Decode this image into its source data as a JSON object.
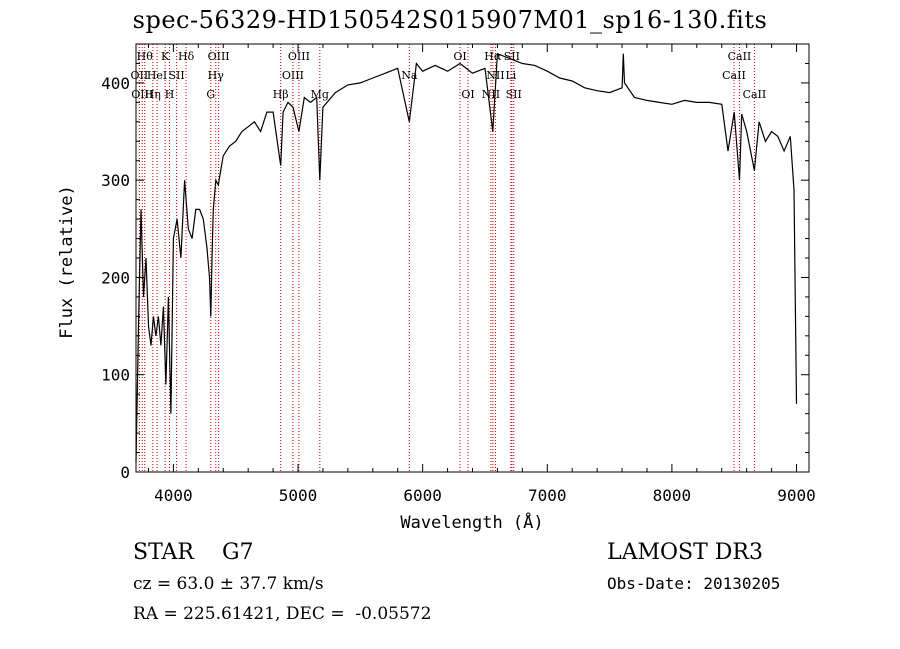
{
  "chart_data": {
    "type": "line",
    "title": "spec-56329-HD150542S015907M01_sp16-130.fits",
    "xlabel": "Wavelength (Å)",
    "ylabel": "Flux (relative)",
    "xlim": [
      3700,
      9100
    ],
    "ylim": [
      0,
      440
    ],
    "xticks": [
      4000,
      5000,
      6000,
      7000,
      8000,
      9000
    ],
    "yticks": [
      0,
      100,
      200,
      300,
      400
    ],
    "series": [
      {
        "name": "flux",
        "x": [
          3700,
          3720,
          3740,
          3760,
          3780,
          3800,
          3820,
          3840,
          3860,
          3880,
          3900,
          3920,
          3940,
          3960,
          3980,
          4000,
          4030,
          4060,
          4090,
          4120,
          4150,
          4180,
          4210,
          4240,
          4270,
          4290,
          4300,
          4310,
          4320,
          4340,
          4360,
          4380,
          4400,
          4450,
          4500,
          4550,
          4600,
          4650,
          4700,
          4750,
          4800,
          4861,
          4880,
          4920,
          4960,
          5007,
          5050,
          5100,
          5150,
          5175,
          5200,
          5300,
          5400,
          5500,
          5600,
          5700,
          5800,
          5893,
          5950,
          6000,
          6100,
          6200,
          6300,
          6400,
          6500,
          6563,
          6600,
          6700,
          6800,
          6900,
          7000,
          7100,
          7200,
          7300,
          7400,
          7500,
          7600,
          7610,
          7620,
          7700,
          7800,
          7900,
          8000,
          8100,
          8200,
          8300,
          8400,
          8450,
          8500,
          8542,
          8560,
          8600,
          8662,
          8700,
          8750,
          8800,
          8850,
          8900,
          8950,
          8980,
          9000
        ],
        "values": [
          10,
          150,
          270,
          180,
          220,
          150,
          130,
          160,
          140,
          160,
          130,
          170,
          90,
          180,
          60,
          240,
          260,
          220,
          300,
          250,
          240,
          270,
          270,
          260,
          230,
          200,
          160,
          220,
          270,
          300,
          295,
          310,
          325,
          335,
          340,
          350,
          355,
          360,
          350,
          370,
          370,
          315,
          370,
          380,
          375,
          350,
          385,
          380,
          385,
          300,
          375,
          390,
          398,
          400,
          405,
          410,
          415,
          360,
          420,
          412,
          418,
          412,
          420,
          410,
          415,
          350,
          430,
          425,
          420,
          418,
          412,
          405,
          402,
          395,
          392,
          390,
          395,
          430,
          400,
          385,
          382,
          380,
          378,
          382,
          380,
          380,
          378,
          330,
          370,
          300,
          368,
          350,
          310,
          360,
          340,
          350,
          345,
          330,
          345,
          290,
          70
        ]
      }
    ],
    "line_markers": [
      {
        "wavelength": 3727,
        "label": "OII",
        "row": 1
      },
      {
        "wavelength": 3750,
        "label": "OIII",
        "row": 2
      },
      {
        "wavelength": 3770,
        "label": "Hθ",
        "row": 0
      },
      {
        "wavelength": 3835,
        "label": "Hη",
        "row": 2
      },
      {
        "wavelength": 3869,
        "label": "HeI",
        "row": 1
      },
      {
        "wavelength": 3934,
        "label": "K",
        "row": 0
      },
      {
        "wavelength": 3969,
        "label": "H",
        "row": 2
      },
      {
        "wavelength": 4026,
        "label": "SII",
        "row": 1
      },
      {
        "wavelength": 4102,
        "label": "Hδ",
        "row": 0
      },
      {
        "wavelength": 4300,
        "label": "G",
        "row": 2
      },
      {
        "wavelength": 4340,
        "label": "Hγ",
        "row": 1
      },
      {
        "wavelength": 4363,
        "label": "OIII",
        "row": 0
      },
      {
        "wavelength": 4861,
        "label": "Hβ",
        "row": 2
      },
      {
        "wavelength": 4959,
        "label": "OIII",
        "row": 1
      },
      {
        "wavelength": 5007,
        "label": "OIII",
        "row": 0
      },
      {
        "wavelength": 5175,
        "label": "Mg",
        "row": 2
      },
      {
        "wavelength": 5893,
        "label": "Na",
        "row": 1
      },
      {
        "wavelength": 6300,
        "label": "OI",
        "row": 0
      },
      {
        "wavelength": 6364,
        "label": "OI",
        "row": 2
      },
      {
        "wavelength": 6548,
        "label": "NII",
        "row": 2
      },
      {
        "wavelength": 6563,
        "label": "Hα",
        "row": 0
      },
      {
        "wavelength": 6584,
        "label": "NII",
        "row": 1
      },
      {
        "wavelength": 6708,
        "label": "Li",
        "row": 1
      },
      {
        "wavelength": 6716,
        "label": "SII",
        "row": 0
      },
      {
        "wavelength": 6731,
        "label": "SII",
        "row": 2
      },
      {
        "wavelength": 8498,
        "label": "CaII",
        "row": 1
      },
      {
        "wavelength": 8542,
        "label": "CaII",
        "row": 0
      },
      {
        "wavelength": 8662,
        "label": "CaII",
        "row": 2
      }
    ]
  },
  "info": {
    "object_class": "STAR",
    "subclass": "G7",
    "survey": "LAMOST DR3",
    "redshift": "cz = 63.0 ± 37.7 km/s",
    "obs_date": "Obs-Date: 20130205",
    "coordinates": "RA = 225.61421, DEC =  -0.05572"
  },
  "colors": {
    "spectrum": "#000000",
    "line_marker": "#cc0000",
    "axes": "#000000",
    "background": "#ffffff"
  }
}
